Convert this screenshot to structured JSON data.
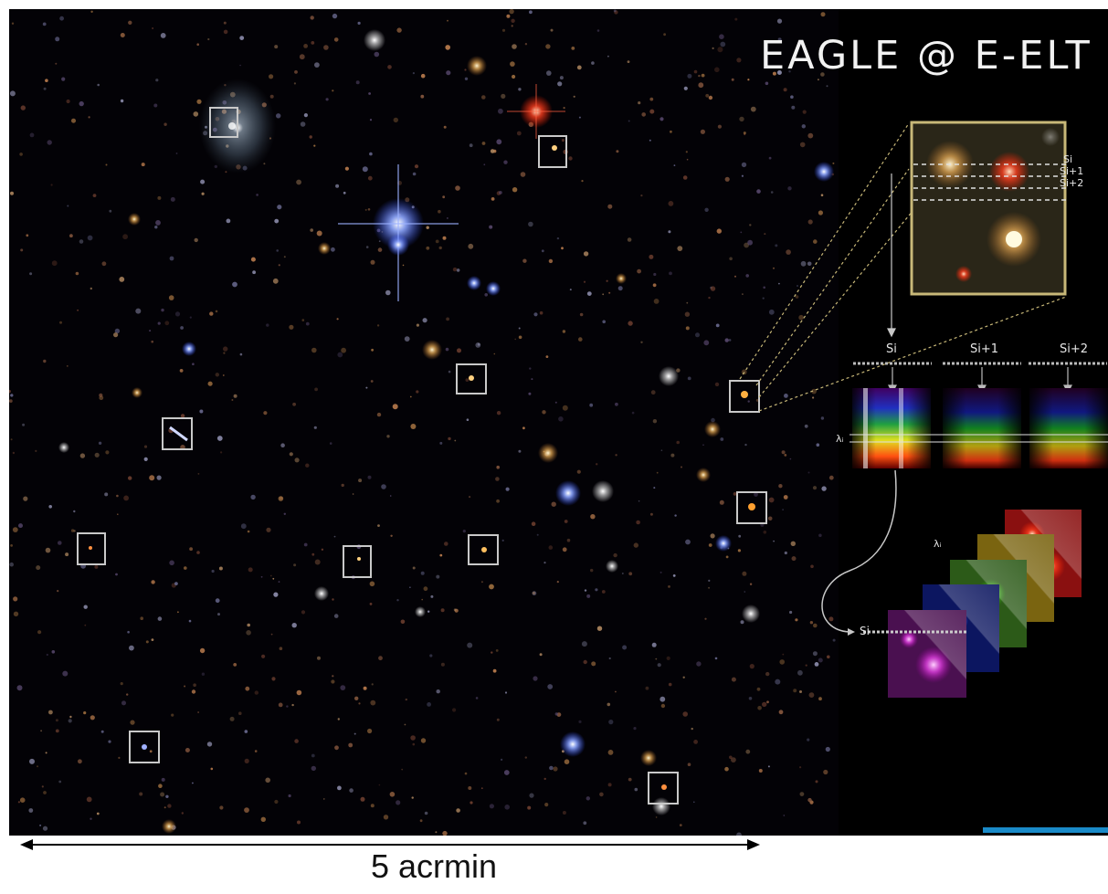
{
  "title": "EAGLE @ E-ELT",
  "slice_labels": {
    "inset_si": "Si",
    "inset_si1": "Si+1",
    "inset_si2": "Si+2",
    "spec_si": "Si",
    "spec_si1": "Si+1",
    "spec_si2": "Si+2",
    "lambda_spec": "λᵢ",
    "lambda_cube": "λᵢ",
    "cube_si": "Si"
  },
  "scale_bar": {
    "label": "5 acrmin"
  },
  "colors": {
    "sky": "#030206",
    "panel": "#000000",
    "box": "#c9c9c9",
    "inset_frame": "#c8b878",
    "title": "#f2f2f2"
  }
}
